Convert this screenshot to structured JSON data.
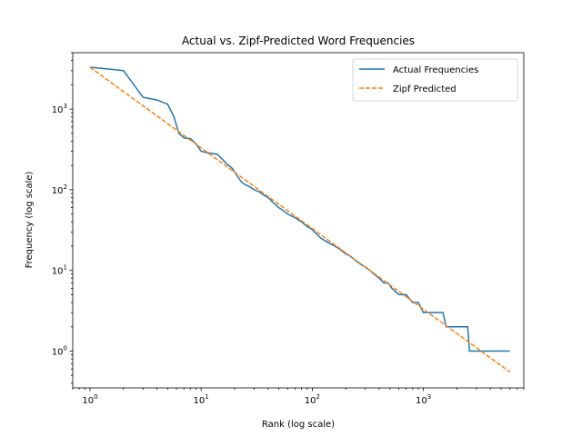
{
  "chart_data": {
    "type": "line",
    "title": "Actual vs. Zipf-Predicted Word Frequencies",
    "xlabel": "Rank (log scale)",
    "ylabel": "Frequency (log scale)",
    "xscale": "log",
    "yscale": "log",
    "xlim": [
      0.7,
      8000
    ],
    "ylim": [
      0.35,
      5000
    ],
    "xticks": [
      {
        "value": 1,
        "base": "10",
        "exp": "0"
      },
      {
        "value": 10,
        "base": "10",
        "exp": "1"
      },
      {
        "value": 100,
        "base": "10",
        "exp": "2"
      },
      {
        "value": 1000,
        "base": "10",
        "exp": "3"
      }
    ],
    "yticks": [
      {
        "value": 1,
        "base": "10",
        "exp": "0"
      },
      {
        "value": 10,
        "base": "10",
        "exp": "1"
      },
      {
        "value": 100,
        "base": "10",
        "exp": "2"
      },
      {
        "value": 1000,
        "base": "10",
        "exp": "3"
      }
    ],
    "grid": false,
    "legend": {
      "position": "top-right"
    },
    "series": [
      {
        "name": "Actual Frequencies",
        "color": "#1f77b4",
        "style": "solid",
        "x": [
          1,
          2,
          3,
          4,
          5,
          5.7,
          6.3,
          7,
          8,
          9,
          10,
          11,
          12,
          14,
          15,
          17,
          19,
          21,
          23,
          25,
          27,
          30,
          33,
          37,
          40,
          44,
          50,
          55,
          60,
          70,
          80,
          90,
          100,
          110,
          120,
          140,
          160,
          180,
          200,
          220,
          250,
          270,
          300,
          330,
          360,
          400,
          440,
          480,
          520,
          600,
          650,
          700,
          800,
          900,
          1000,
          1100,
          1300,
          1500,
          1600,
          2000,
          2500,
          2600,
          3000,
          4000,
          6000
        ],
        "y": [
          3300,
          3000,
          1400,
          1300,
          1150,
          800,
          500,
          440,
          430,
          370,
          300,
          290,
          285,
          275,
          250,
          210,
          185,
          150,
          125,
          115,
          110,
          100,
          95,
          85,
          80,
          70,
          60,
          55,
          50,
          45,
          40,
          35,
          32,
          28,
          25,
          22,
          20,
          18,
          16,
          15,
          13,
          12,
          11,
          10,
          9,
          8,
          7,
          7,
          6,
          5,
          5,
          5,
          4,
          4,
          3,
          3,
          3,
          3,
          2,
          2,
          2,
          1,
          1,
          1,
          1
        ]
      },
      {
        "name": "Zipf Predicted",
        "color": "#ff7f0e",
        "style": "dashed",
        "x": [
          1,
          6000
        ],
        "y": [
          3300,
          0.55
        ]
      }
    ]
  }
}
